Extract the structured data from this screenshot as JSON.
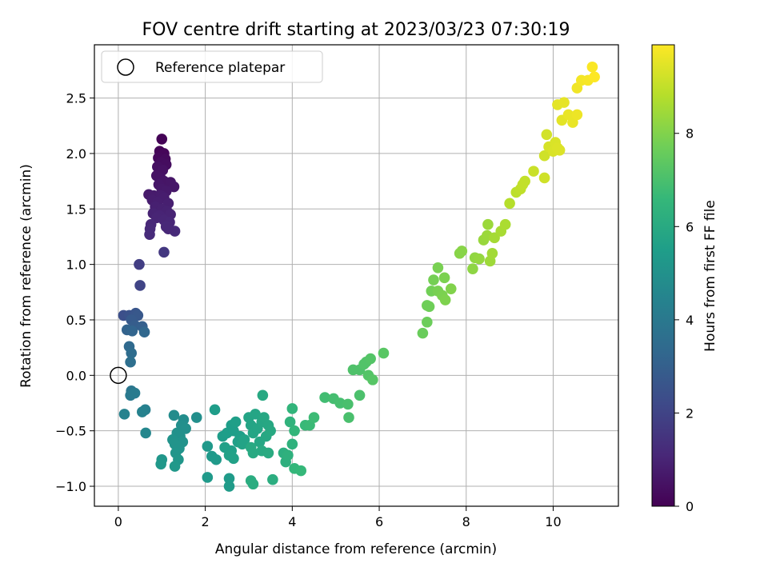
{
  "chart_data": {
    "type": "scatter",
    "title": "FOV centre drift starting at 2023/03/23 07:30:19",
    "xlabel": "Angular distance from reference (arcmin)",
    "ylabel": "Rotation from reference (arcmin)",
    "xlim": [
      -0.55,
      11.5
    ],
    "ylim": [
      -1.18,
      2.98
    ],
    "xticks": [
      0,
      2,
      4,
      6,
      8,
      10
    ],
    "xtick_labels": [
      "0",
      "2",
      "4",
      "6",
      "8",
      "10"
    ],
    "yticks": [
      -1.0,
      -0.5,
      0.0,
      0.5,
      1.0,
      1.5,
      2.0,
      2.5
    ],
    "ytick_labels": [
      "−1.0",
      "−0.5",
      "0.0",
      "0.5",
      "1.0",
      "1.5",
      "2.0",
      "2.5"
    ],
    "grid": true,
    "legend": {
      "location": "upper-left",
      "entries": [
        "Reference platepar"
      ]
    },
    "reference_point": {
      "x": 0.0,
      "y": 0.0
    },
    "colorbar": {
      "label": "Hours from first FF file",
      "colormap": "viridis",
      "min": 0,
      "max": 9.9,
      "ticks": [
        0,
        2,
        4,
        6,
        8
      ],
      "tick_labels": [
        "0",
        "2",
        "4",
        "6",
        "8"
      ]
    },
    "series": [
      {
        "points": [
          [
            1.0,
            2.13
          ],
          [
            0.95,
            2.02
          ],
          [
            1.05,
            2.0
          ],
          [
            0.92,
            1.96
          ],
          [
            1.08,
            1.95
          ],
          [
            0.98,
            1.92
          ],
          [
            1.1,
            1.9
          ],
          [
            0.9,
            1.88
          ],
          [
            1.02,
            1.85
          ],
          [
            0.88,
            1.8
          ],
          [
            0.97,
            1.78
          ],
          [
            1.05,
            1.75
          ],
          [
            1.2,
            1.74
          ],
          [
            0.93,
            1.72
          ],
          [
            1.28,
            1.7
          ],
          [
            1.0,
            1.68
          ],
          [
            1.1,
            1.66
          ],
          [
            0.7,
            1.63
          ],
          [
            0.82,
            1.62
          ],
          [
            0.98,
            1.62
          ],
          [
            1.05,
            1.6
          ],
          [
            0.78,
            1.58
          ],
          [
            0.9,
            1.56
          ],
          [
            1.15,
            1.55
          ],
          [
            0.85,
            1.52
          ],
          [
            1.0,
            1.5
          ],
          [
            1.12,
            1.48
          ],
          [
            0.8,
            1.46
          ],
          [
            1.2,
            1.45
          ],
          [
            0.95,
            1.44
          ],
          [
            0.88,
            1.42
          ],
          [
            1.05,
            1.4
          ],
          [
            1.18,
            1.38
          ],
          [
            0.75,
            1.36
          ],
          [
            1.1,
            1.34
          ],
          [
            0.73,
            1.32
          ],
          [
            1.3,
            1.3
          ],
          [
            0.72,
            1.27
          ],
          [
            1.15,
            1.32
          ],
          [
            1.05,
            1.11
          ]
        ],
        "hours": [
          0.05,
          0.1,
          0.15,
          0.2,
          0.25,
          0.3,
          0.35,
          0.4,
          0.45,
          0.5,
          0.52,
          0.55,
          0.58,
          0.6,
          0.62,
          0.65,
          0.68,
          0.7,
          0.72,
          0.75,
          0.78,
          0.8,
          0.82,
          0.85,
          0.88,
          0.9,
          0.92,
          0.95,
          0.98,
          1.0,
          1.02,
          1.05,
          1.08,
          1.1,
          1.12,
          1.15,
          1.18,
          1.2,
          1.1,
          1.6
        ]
      },
      {
        "points": [
          [
            0.48,
            1.0
          ],
          [
            0.5,
            0.81
          ],
          [
            0.12,
            0.54
          ],
          [
            0.25,
            0.54
          ],
          [
            0.4,
            0.56
          ],
          [
            0.45,
            0.54
          ],
          [
            0.3,
            0.5
          ],
          [
            0.38,
            0.45
          ],
          [
            0.55,
            0.44
          ],
          [
            0.2,
            0.41
          ],
          [
            0.32,
            0.4
          ],
          [
            0.6,
            0.39
          ],
          [
            0.25,
            0.26
          ],
          [
            0.3,
            0.2
          ],
          [
            0.28,
            0.12
          ],
          [
            0.3,
            -0.14
          ],
          [
            0.28,
            -0.18
          ],
          [
            0.38,
            -0.16
          ],
          [
            0.62,
            -0.31
          ],
          [
            0.55,
            -0.33
          ],
          [
            0.14,
            -0.35
          ],
          [
            0.63,
            -0.52
          ]
        ],
        "hours": [
          1.8,
          2.0,
          2.4,
          2.5,
          2.6,
          2.7,
          2.8,
          2.9,
          3.0,
          3.1,
          3.2,
          3.3,
          3.4,
          3.5,
          3.6,
          3.9,
          4.0,
          4.1,
          4.3,
          4.4,
          4.4,
          4.6
        ]
      },
      {
        "points": [
          [
            1.28,
            -0.36
          ],
          [
            1.5,
            -0.4
          ],
          [
            1.8,
            -0.38
          ],
          [
            1.45,
            -0.45
          ],
          [
            1.55,
            -0.48
          ],
          [
            1.35,
            -0.52
          ],
          [
            1.42,
            -0.55
          ],
          [
            1.25,
            -0.58
          ],
          [
            1.48,
            -0.6
          ],
          [
            1.3,
            -0.62
          ],
          [
            1.4,
            -0.66
          ],
          [
            1.32,
            -0.7
          ],
          [
            1.0,
            -0.76
          ],
          [
            1.38,
            -0.76
          ],
          [
            0.98,
            -0.8
          ],
          [
            1.3,
            -0.82
          ],
          [
            2.05,
            -0.64
          ],
          [
            2.15,
            -0.73
          ],
          [
            2.25,
            -0.76
          ],
          [
            2.05,
            -0.92
          ],
          [
            2.55,
            -0.93
          ],
          [
            2.55,
            -1.0
          ],
          [
            2.22,
            -0.31
          ],
          [
            2.4,
            -0.55
          ],
          [
            2.5,
            -0.52
          ],
          [
            2.6,
            -0.45
          ],
          [
            2.65,
            -0.5
          ],
          [
            2.7,
            -0.42
          ],
          [
            2.8,
            -0.55
          ],
          [
            2.75,
            -0.6
          ],
          [
            2.6,
            -0.68
          ],
          [
            2.45,
            -0.65
          ],
          [
            2.55,
            -0.72
          ],
          [
            2.65,
            -0.75
          ],
          [
            2.85,
            -0.62
          ],
          [
            2.9,
            -0.58
          ],
          [
            3.0,
            -0.38
          ],
          [
            3.05,
            -0.45
          ],
          [
            3.1,
            -0.52
          ],
          [
            3.15,
            -0.35
          ],
          [
            3.2,
            -0.48
          ],
          [
            3.25,
            -0.6
          ],
          [
            3.3,
            -0.42
          ],
          [
            3.35,
            -0.38
          ],
          [
            3.4,
            -0.55
          ],
          [
            3.45,
            -0.45
          ],
          [
            3.5,
            -0.5
          ],
          [
            3.32,
            -0.18
          ],
          [
            3.05,
            -0.65
          ],
          [
            3.1,
            -0.7
          ],
          [
            3.3,
            -0.68
          ],
          [
            3.45,
            -0.7
          ],
          [
            3.05,
            -0.95
          ],
          [
            3.1,
            -0.98
          ],
          [
            3.55,
            -0.94
          ]
        ],
        "hours": [
          4.8,
          4.85,
          4.9,
          4.9,
          4.95,
          5.0,
          5.0,
          5.05,
          5.05,
          5.1,
          5.1,
          5.15,
          5.2,
          5.2,
          5.25,
          5.25,
          5.3,
          5.3,
          5.35,
          5.35,
          5.4,
          5.4,
          5.45,
          5.45,
          5.5,
          5.5,
          5.5,
          5.55,
          5.55,
          5.6,
          5.6,
          5.6,
          5.65,
          5.65,
          5.7,
          5.7,
          5.75,
          5.75,
          5.8,
          5.8,
          5.8,
          5.85,
          5.85,
          5.9,
          5.9,
          5.9,
          5.95,
          5.95,
          6.0,
          6.0,
          6.0,
          6.05,
          6.1,
          6.1,
          6.15
        ]
      },
      {
        "points": [
          [
            3.8,
            -0.7
          ],
          [
            3.85,
            -0.78
          ],
          [
            3.9,
            -0.72
          ],
          [
            4.0,
            -0.62
          ],
          [
            3.95,
            -0.42
          ],
          [
            4.0,
            -0.3
          ],
          [
            4.05,
            -0.5
          ],
          [
            4.05,
            -0.84
          ],
          [
            4.2,
            -0.86
          ],
          [
            4.3,
            -0.45
          ],
          [
            4.4,
            -0.45
          ],
          [
            4.5,
            -0.38
          ],
          [
            4.75,
            -0.2
          ],
          [
            4.95,
            -0.21
          ],
          [
            5.1,
            -0.25
          ],
          [
            5.3,
            -0.38
          ],
          [
            5.28,
            -0.26
          ],
          [
            5.55,
            -0.18
          ],
          [
            5.4,
            0.05
          ],
          [
            5.55,
            0.05
          ],
          [
            5.65,
            0.1
          ],
          [
            5.7,
            0.12
          ],
          [
            5.8,
            0.15
          ],
          [
            5.75,
            0.0
          ],
          [
            5.85,
            -0.04
          ],
          [
            6.1,
            0.2
          ]
        ],
        "hours": [
          6.2,
          6.25,
          6.3,
          6.35,
          6.4,
          6.45,
          6.5,
          6.55,
          6.6,
          6.65,
          6.7,
          6.75,
          6.85,
          6.9,
          6.95,
          7.0,
          7.0,
          7.05,
          7.1,
          7.1,
          7.15,
          7.15,
          7.2,
          7.2,
          7.25,
          7.3
        ]
      },
      {
        "points": [
          [
            7.0,
            0.38
          ],
          [
            7.1,
            0.48
          ],
          [
            7.1,
            0.63
          ],
          [
            7.15,
            0.62
          ],
          [
            7.2,
            0.76
          ],
          [
            7.25,
            0.86
          ],
          [
            7.35,
            0.97
          ],
          [
            7.35,
            0.76
          ],
          [
            7.45,
            0.72
          ],
          [
            7.5,
            0.88
          ],
          [
            7.52,
            0.68
          ],
          [
            7.65,
            0.78
          ],
          [
            7.85,
            1.1
          ],
          [
            7.9,
            1.12
          ],
          [
            8.15,
            0.96
          ],
          [
            8.2,
            1.06
          ],
          [
            8.3,
            1.05
          ],
          [
            8.4,
            1.22
          ],
          [
            8.48,
            1.26
          ],
          [
            8.5,
            1.36
          ],
          [
            8.55,
            1.03
          ],
          [
            8.6,
            1.1
          ],
          [
            8.65,
            1.24
          ],
          [
            8.8,
            1.3
          ],
          [
            8.9,
            1.36
          ]
        ],
        "hours": [
          7.6,
          7.65,
          7.7,
          7.7,
          7.75,
          7.8,
          7.85,
          7.85,
          7.9,
          7.9,
          7.95,
          8.0,
          8.1,
          8.1,
          8.2,
          8.25,
          8.3,
          8.35,
          8.4,
          8.4,
          8.45,
          8.5,
          8.55,
          8.6,
          8.65
        ]
      },
      {
        "points": [
          [
            9.0,
            1.55
          ],
          [
            9.15,
            1.65
          ],
          [
            9.25,
            1.68
          ],
          [
            9.3,
            1.72
          ],
          [
            9.35,
            1.75
          ],
          [
            9.55,
            1.84
          ],
          [
            9.8,
            1.78
          ],
          [
            9.8,
            1.98
          ],
          [
            9.85,
            2.17
          ],
          [
            9.9,
            2.06
          ],
          [
            10.0,
            2.02
          ],
          [
            10.05,
            2.1
          ],
          [
            10.1,
            2.05
          ],
          [
            10.15,
            2.03
          ],
          [
            10.1,
            2.44
          ],
          [
            10.2,
            2.3
          ],
          [
            10.25,
            2.46
          ],
          [
            10.35,
            2.35
          ],
          [
            10.45,
            2.28
          ],
          [
            10.55,
            2.35
          ],
          [
            10.55,
            2.59
          ],
          [
            10.65,
            2.66
          ],
          [
            10.8,
            2.66
          ],
          [
            10.9,
            2.78
          ],
          [
            10.95,
            2.69
          ]
        ],
        "hours": [
          8.8,
          8.9,
          8.95,
          9.0,
          9.0,
          9.1,
          9.2,
          9.2,
          9.25,
          9.3,
          9.35,
          9.35,
          9.4,
          9.4,
          9.5,
          9.5,
          9.55,
          9.6,
          9.6,
          9.65,
          9.7,
          9.75,
          9.8,
          9.85,
          9.9
        ]
      }
    ]
  }
}
